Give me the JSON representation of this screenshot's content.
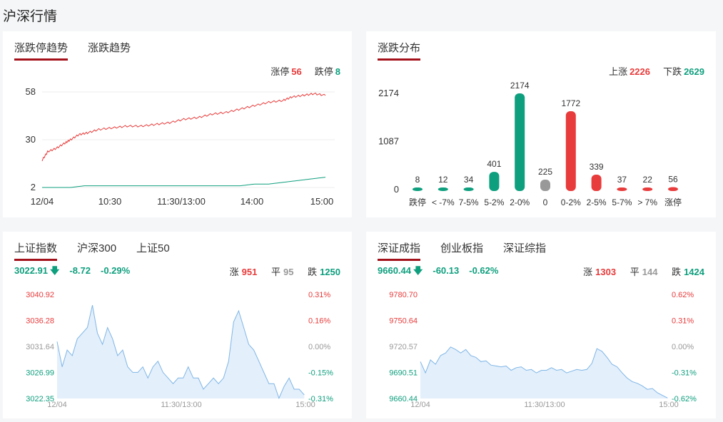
{
  "page": {
    "title": "沪深行情"
  },
  "limit_trend": {
    "tabs": [
      {
        "label": "涨跌停趋势",
        "active": true
      },
      {
        "label": "涨跌趋势",
        "active": false
      }
    ],
    "legend": {
      "up_label": "涨停",
      "up_value": "56",
      "down_label": "跌停",
      "down_value": "8"
    },
    "colors": {
      "up": "#e83b3b",
      "down": "#0e9f7e"
    }
  },
  "distribution": {
    "tabs": [
      {
        "label": "涨跌分布",
        "active": true
      }
    ],
    "legend": {
      "up_label": "上涨",
      "up_value": "2226",
      "down_label": "下跌",
      "down_value": "2629"
    }
  },
  "sh_panel": {
    "tabs": [
      {
        "label": "上证指数",
        "active": true
      },
      {
        "label": "沪深300",
        "active": false
      },
      {
        "label": "上证50",
        "active": false
      }
    ],
    "quote": {
      "price": "3022.91",
      "change": "-8.72",
      "pct": "-0.29%"
    },
    "stats": {
      "up_label": "涨",
      "up_value": "951",
      "flat_label": "平",
      "flat_value": "95",
      "down_label": "跌",
      "down_value": "1250"
    }
  },
  "sz_panel": {
    "tabs": [
      {
        "label": "深证成指",
        "active": true
      },
      {
        "label": "创业板指",
        "active": false
      },
      {
        "label": "深证综指",
        "active": false
      }
    ],
    "quote": {
      "price": "9660.44",
      "change": "-60.13",
      "pct": "-0.62%"
    },
    "stats": {
      "up_label": "涨",
      "up_value": "1303",
      "flat_label": "平",
      "flat_value": "144",
      "down_label": "跌",
      "down_value": "1424"
    }
  },
  "chart_data": [
    {
      "type": "line",
      "y_ticks": [
        "58",
        "30",
        "2"
      ],
      "ylim": [
        2,
        58
      ],
      "x_ticks": [
        "12/04",
        "10:30",
        "11:30/13:00",
        "14:00",
        "15:00"
      ],
      "series": [
        {
          "name": "涨停",
          "color": "#e83b3b",
          "points": [
            [
              0,
              18
            ],
            [
              0.02,
              23
            ],
            [
              0.05,
              25
            ],
            [
              0.08,
              28
            ],
            [
              0.1,
              30
            ],
            [
              0.13,
              33
            ],
            [
              0.16,
              34
            ],
            [
              0.2,
              36
            ],
            [
              0.25,
              37
            ],
            [
              0.3,
              38
            ],
            [
              0.35,
              38
            ],
            [
              0.4,
              39
            ],
            [
              0.45,
              40
            ],
            [
              0.5,
              42
            ],
            [
              0.55,
              43
            ],
            [
              0.6,
              45
            ],
            [
              0.65,
              46
            ],
            [
              0.7,
              48
            ],
            [
              0.75,
              50
            ],
            [
              0.8,
              52
            ],
            [
              0.85,
              53
            ],
            [
              0.88,
              55
            ],
            [
              0.92,
              56
            ],
            [
              0.96,
              57
            ],
            [
              1,
              56
            ]
          ]
        },
        {
          "name": "跌停",
          "color": "#0e9f7e",
          "points": [
            [
              0,
              2
            ],
            [
              0.1,
              2
            ],
            [
              0.15,
              3
            ],
            [
              0.25,
              3
            ],
            [
              0.5,
              3
            ],
            [
              0.6,
              3
            ],
            [
              0.7,
              3
            ],
            [
              0.75,
              4
            ],
            [
              0.8,
              4
            ],
            [
              0.85,
              5
            ],
            [
              0.9,
              6
            ],
            [
              0.95,
              7
            ],
            [
              1,
              8
            ]
          ]
        }
      ]
    },
    {
      "type": "bar",
      "y_ticks": [
        "2174",
        "1087",
        "0"
      ],
      "ylim": [
        0,
        2174
      ],
      "categories": [
        "跌停",
        "< -7%",
        "7-5%",
        "5-2%",
        "2-0%",
        "0",
        "0-2%",
        "2-5%",
        "5-7%",
        "> 7%",
        "涨停"
      ],
      "values": [
        8,
        12,
        34,
        401,
        2174,
        225,
        1772,
        339,
        37,
        22,
        56
      ],
      "colors": [
        "#0e9f7e",
        "#0e9f7e",
        "#0e9f7e",
        "#0e9f7e",
        "#0e9f7e",
        "#999999",
        "#e83b3b",
        "#e83b3b",
        "#e83b3b",
        "#e83b3b",
        "#e83b3b"
      ]
    },
    {
      "type": "area",
      "y_ticks_left": [
        "3040.92",
        "3036.28",
        "3031.64",
        "3026.99",
        "3022.35"
      ],
      "y_ticks_right": [
        "0.31%",
        "0.16%",
        "0.00%",
        "-0.15%",
        "-0.31%"
      ],
      "ylim": [
        3022.35,
        3040.92
      ],
      "x_ticks": [
        "12/04",
        "11:30/13:00",
        "15:00"
      ],
      "color": "#7fb6e6",
      "values": [
        3032.5,
        3028,
        3031,
        3030,
        3033,
        3034,
        3035,
        3039,
        3034,
        3032,
        3035,
        3033,
        3030,
        3031,
        3028,
        3027,
        3027,
        3028,
        3026,
        3028,
        3029,
        3027,
        3026,
        3025,
        3026,
        3026,
        3028,
        3026,
        3026,
        3024,
        3025,
        3026,
        3025,
        3026,
        3029,
        3036,
        3038,
        3035,
        3032,
        3031,
        3029,
        3027,
        3025,
        3025,
        3022.4,
        3024.5,
        3026,
        3024,
        3024,
        3023
      ]
    },
    {
      "type": "area",
      "y_ticks_left": [
        "9780.70",
        "9750.64",
        "9720.57",
        "9690.51",
        "9660.44"
      ],
      "y_ticks_right": [
        "0.62%",
        "0.31%",
        "0.00%",
        "-0.31%",
        "-0.62%"
      ],
      "ylim": [
        9660.44,
        9780.7
      ],
      "x_ticks": [
        "12/04",
        "11:30/13:00",
        "15:00"
      ],
      "color": "#7fb6e6",
      "values": [
        9703,
        9690,
        9705,
        9700,
        9710,
        9713,
        9720,
        9717,
        9713,
        9717,
        9710,
        9708,
        9703,
        9704,
        9699,
        9698,
        9697,
        9698,
        9693,
        9696,
        9697,
        9693,
        9694,
        9690,
        9693,
        9693,
        9696,
        9693,
        9694,
        9690,
        9692,
        9694,
        9693,
        9694,
        9701,
        9718,
        9715,
        9708,
        9700,
        9697,
        9690,
        9684,
        9680,
        9678,
        9675,
        9671,
        9672,
        9667,
        9664,
        9661
      ]
    }
  ]
}
